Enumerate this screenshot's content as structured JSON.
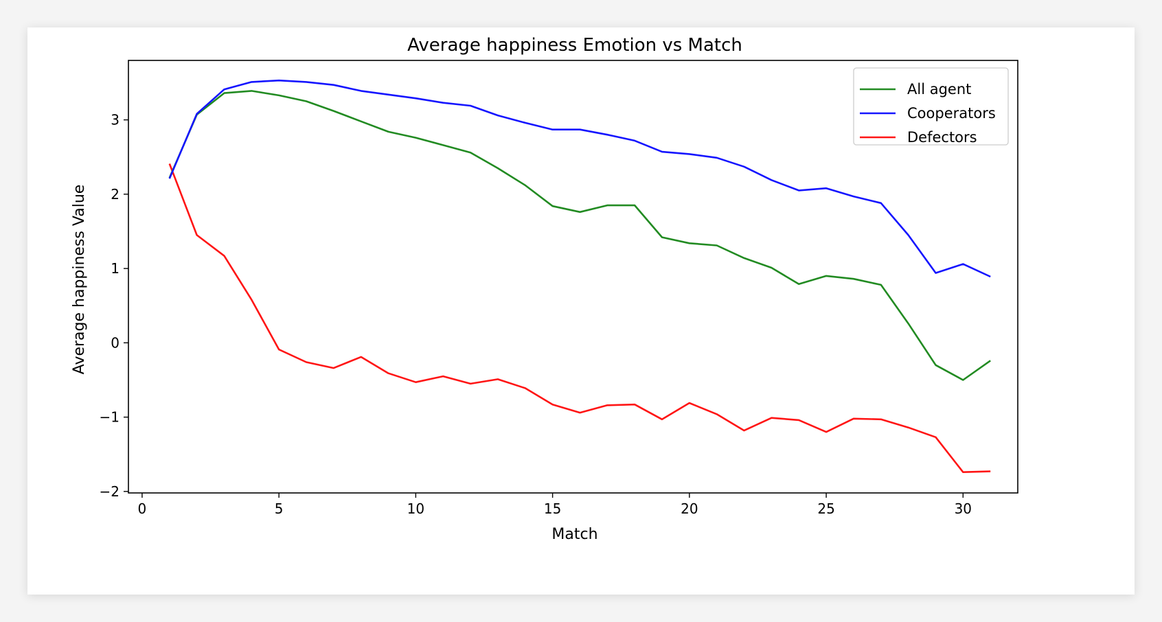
{
  "chart_data": {
    "type": "line",
    "title": "Average happiness Emotion vs Match",
    "xlabel": "Match",
    "ylabel": "Average happiness Value",
    "xlim": [
      -0.5,
      32
    ],
    "ylim": [
      -2.02,
      3.8
    ],
    "xticks": [
      0,
      5,
      10,
      15,
      20,
      25,
      30
    ],
    "xtick_labels": [
      "0",
      "5",
      "10",
      "15",
      "20",
      "25",
      "30"
    ],
    "yticks": [
      -2,
      -1,
      0,
      1,
      2,
      3
    ],
    "ytick_labels": [
      "−2",
      "−1",
      "0",
      "1",
      "2",
      "3"
    ],
    "grid": false,
    "legend_position": "top-right",
    "x": [
      1,
      2,
      3,
      4,
      5,
      6,
      7,
      8,
      9,
      10,
      11,
      12,
      13,
      14,
      15,
      16,
      17,
      18,
      19,
      20,
      21,
      22,
      23,
      24,
      25,
      26,
      27,
      28,
      29,
      30,
      31
    ],
    "series": [
      {
        "name": "All agent",
        "color": "#228b22",
        "values": [
          2.22,
          3.07,
          3.36,
          3.39,
          3.33,
          3.25,
          3.12,
          2.98,
          2.84,
          2.76,
          2.66,
          2.56,
          2.35,
          2.12,
          1.84,
          1.76,
          1.85,
          1.85,
          1.42,
          1.34,
          1.31,
          1.14,
          1.01,
          0.79,
          0.9,
          0.86,
          0.78,
          0.26,
          -0.3,
          -0.5,
          -0.24
        ]
      },
      {
        "name": "Cooperators",
        "color": "#1515ff",
        "values": [
          2.21,
          3.08,
          3.41,
          3.51,
          3.53,
          3.51,
          3.47,
          3.39,
          3.34,
          3.29,
          3.23,
          3.19,
          3.06,
          2.96,
          2.87,
          2.87,
          2.8,
          2.72,
          2.57,
          2.54,
          2.49,
          2.37,
          2.19,
          2.05,
          2.08,
          1.97,
          1.88,
          1.45,
          0.94,
          1.06,
          0.89
        ]
      },
      {
        "name": "Defectors",
        "color": "#ff1515",
        "values": [
          2.41,
          1.45,
          1.17,
          0.58,
          -0.09,
          -0.26,
          -0.34,
          -0.19,
          -0.41,
          -0.53,
          -0.45,
          -0.55,
          -0.49,
          -0.61,
          -0.83,
          -0.94,
          -0.84,
          -0.83,
          -1.03,
          -0.81,
          -0.96,
          -1.18,
          -1.01,
          -1.04,
          -1.2,
          -1.02,
          -1.03,
          -1.14,
          -1.27,
          -1.74,
          -1.73
        ]
      }
    ]
  }
}
